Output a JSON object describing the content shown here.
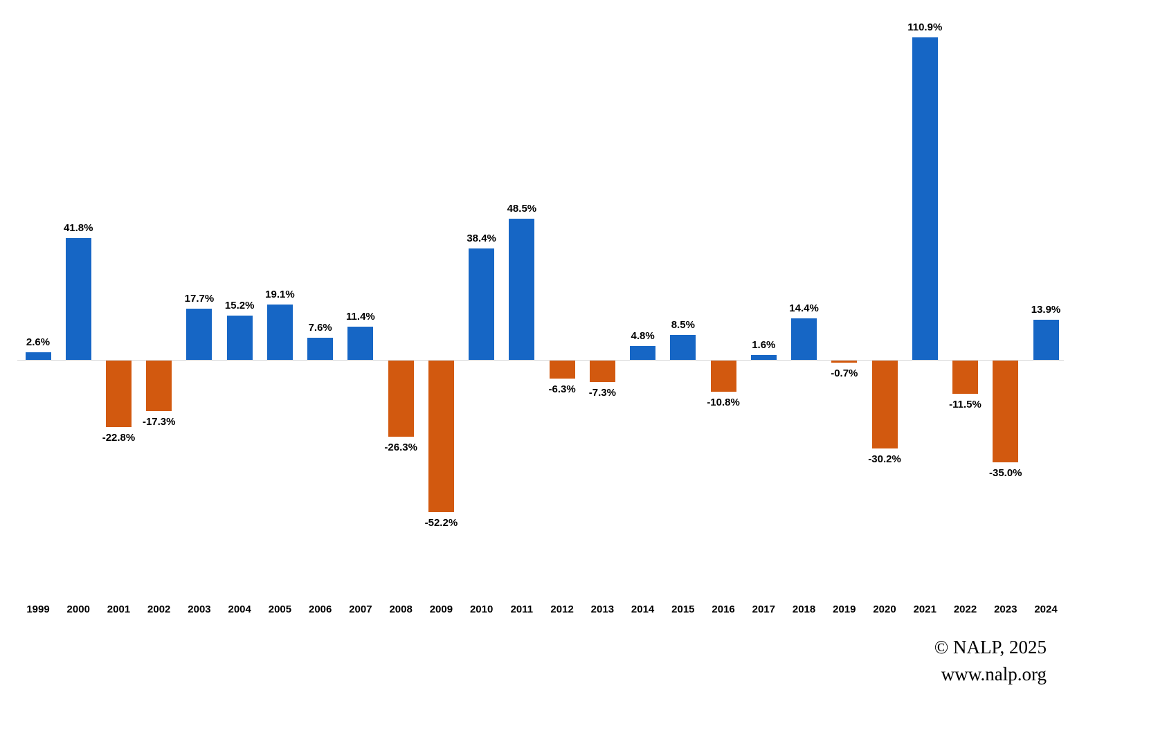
{
  "chart_data": {
    "type": "bar",
    "title": "",
    "xlabel": "",
    "ylabel": "",
    "grid": false,
    "legend": false,
    "ylim": [
      -60,
      115
    ],
    "value_format": "percent",
    "positive_color": "#1666C5",
    "negative_color": "#D2590F",
    "categories": [
      "1999",
      "2000",
      "2001",
      "2002",
      "2003",
      "2004",
      "2005",
      "2006",
      "2007",
      "2008",
      "2009",
      "2010",
      "2011",
      "2012",
      "2013",
      "2014",
      "2015",
      "2016",
      "2017",
      "2018",
      "2019",
      "2020",
      "2021",
      "2022",
      "2023",
      "2024"
    ],
    "values": [
      2.6,
      41.8,
      -22.8,
      -17.3,
      17.7,
      15.2,
      19.1,
      7.6,
      11.4,
      -26.3,
      -52.2,
      38.4,
      48.5,
      -6.3,
      -7.3,
      4.8,
      8.5,
      -10.8,
      1.6,
      14.4,
      -0.7,
      -30.2,
      110.9,
      -11.5,
      -35.0,
      13.9
    ],
    "labels": [
      "2.6%",
      "41.8%",
      "-22.8%",
      "-17.3%",
      "17.7%",
      "15.2%",
      "19.1%",
      "7.6%",
      "11.4%",
      "-26.3%",
      "-52.2%",
      "38.4%",
      "48.5%",
      "-6.3%",
      "-7.3%",
      "4.8%",
      "8.5%",
      "-10.8%",
      "1.6%",
      "14.4%",
      "-0.7%",
      "-30.2%",
      "110.9%",
      "-11.5%",
      "-35.0%",
      "13.9%"
    ]
  },
  "attribution": {
    "line1": "© NALP, 2025",
    "line2": "www.nalp.org"
  }
}
